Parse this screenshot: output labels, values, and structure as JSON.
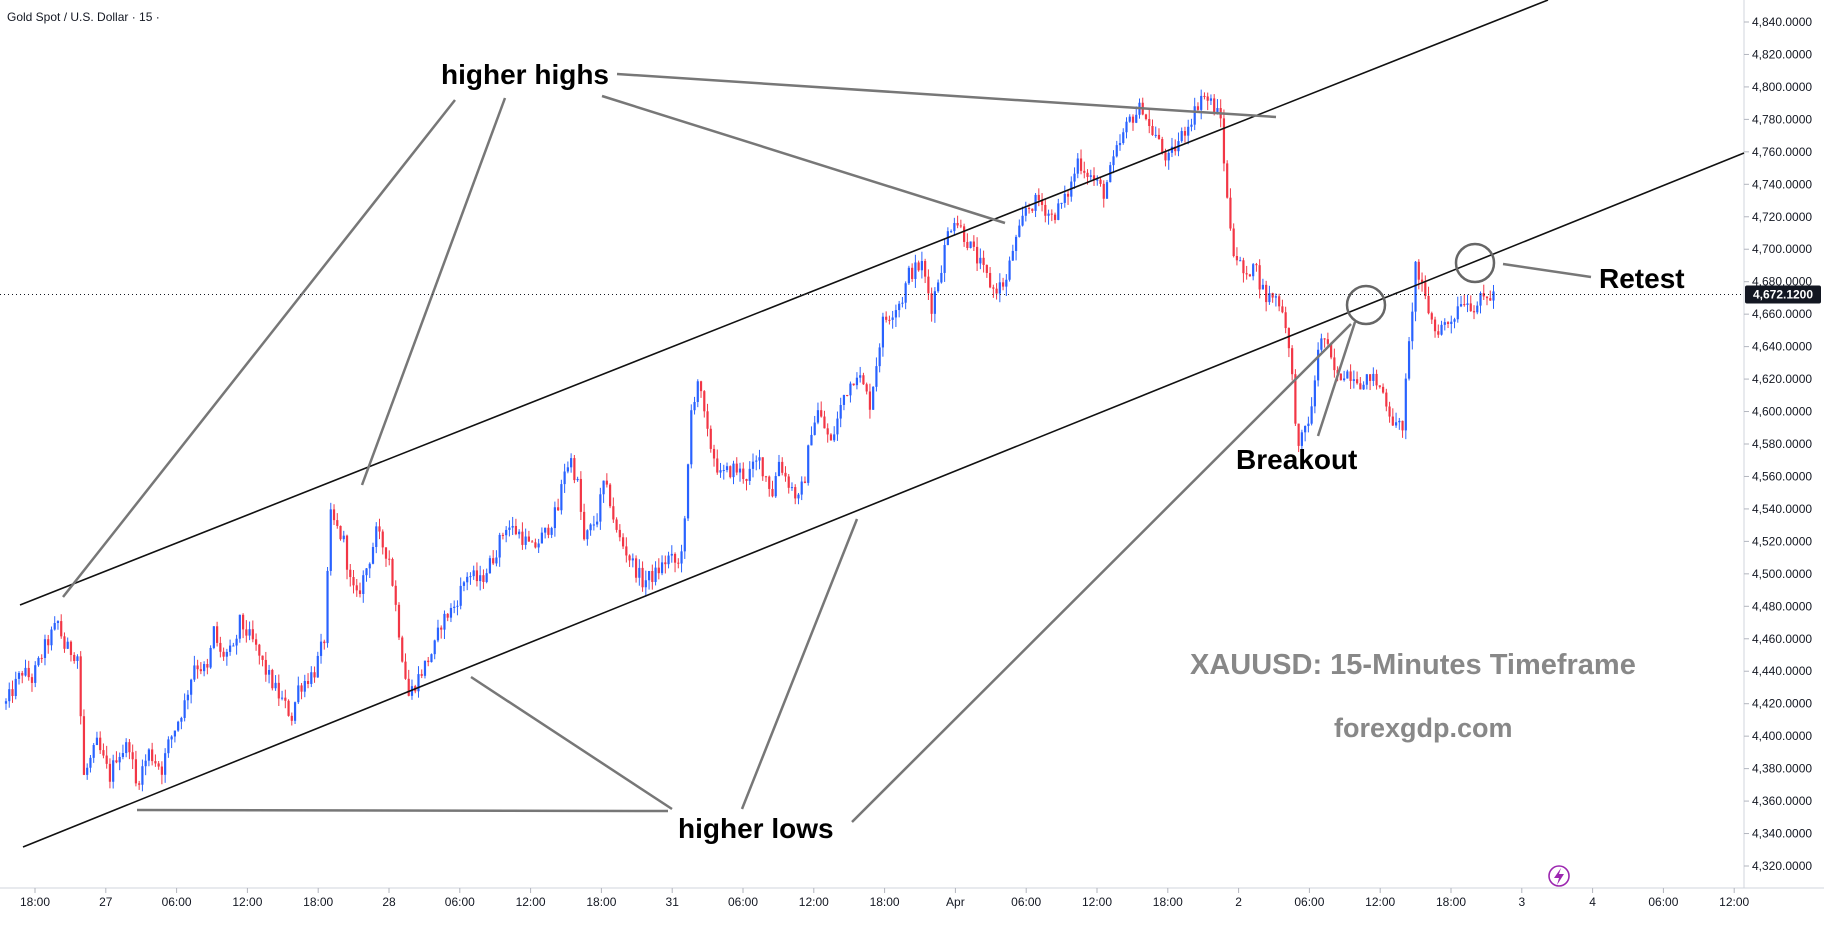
{
  "header": {
    "symbol_title": "Gold Spot / U.S. Dollar · 15 ·"
  },
  "price_axis": {
    "ticks": [
      "4,840.0000",
      "4,820.0000",
      "4,800.0000",
      "4,780.0000",
      "4,760.0000",
      "4,740.0000",
      "4,720.0000",
      "4,700.0000",
      "4,680.0000",
      "4,660.0000",
      "4,640.0000",
      "4,620.0000",
      "4,600.0000",
      "4,580.0000",
      "4,560.0000",
      "4,540.0000",
      "4,520.0000",
      "4,500.0000",
      "4,480.0000",
      "4,460.0000",
      "4,440.0000",
      "4,420.0000",
      "4,400.0000",
      "4,380.0000",
      "4,360.0000",
      "4,340.0000",
      "4,320.0000"
    ],
    "current_price": "4,672.1200"
  },
  "time_axis": {
    "labels": [
      "18:00",
      "27",
      "06:00",
      "12:00",
      "18:00",
      "28",
      "06:00",
      "12:00",
      "18:00",
      "31",
      "06:00",
      "12:00",
      "18:00",
      "Apr",
      "06:00",
      "12:00",
      "18:00",
      "2",
      "06:00",
      "12:00",
      "18:00",
      "3",
      "4",
      "06:00",
      "12:00"
    ]
  },
  "annotations": {
    "higher_highs": "higher highs",
    "higher_lows": "higher lows",
    "breakout": "Breakout",
    "retest": "Retest"
  },
  "watermark": {
    "title": "XAUUSD: 15-Minutes Timeframe",
    "site": "forexgdp.com"
  },
  "colors": {
    "up": "#2962ff",
    "down": "#f23645",
    "channel_line": "#111111",
    "pointer_line": "#777777",
    "watermark_text": "#888888",
    "axis_border": "#d1d4dc",
    "price_tag_bg": "#131722",
    "bolt_icon": "#9c27b0"
  },
  "chart_data": {
    "type": "candlestick",
    "instrument": "XAUUSD",
    "timeframe": "15",
    "ylim": [
      4310,
      4853
    ],
    "last_price": 4672.12,
    "path_points": [
      [
        0,
        4420
      ],
      [
        5,
        4440
      ],
      [
        8,
        4435
      ],
      [
        12,
        4455
      ],
      [
        16,
        4470
      ],
      [
        18,
        4455
      ],
      [
        22,
        4450
      ],
      [
        24,
        4375
      ],
      [
        28,
        4395
      ],
      [
        32,
        4375
      ],
      [
        34,
        4388
      ],
      [
        38,
        4395
      ],
      [
        40,
        4370
      ],
      [
        42,
        4380
      ],
      [
        44,
        4390
      ],
      [
        46,
        4385
      ],
      [
        48,
        4380
      ],
      [
        50,
        4395
      ],
      [
        55,
        4420
      ],
      [
        58,
        4445
      ],
      [
        62,
        4440
      ],
      [
        64,
        4465
      ],
      [
        66,
        4450
      ],
      [
        70,
        4452
      ],
      [
        72,
        4470
      ],
      [
        76,
        4458
      ],
      [
        80,
        4440
      ],
      [
        84,
        4425
      ],
      [
        88,
        4412
      ],
      [
        90,
        4430
      ],
      [
        95,
        4440
      ],
      [
        98,
        4460
      ],
      [
        100,
        4535
      ],
      [
        104,
        4520
      ],
      [
        106,
        4495
      ],
      [
        108,
        4485
      ],
      [
        112,
        4510
      ],
      [
        114,
        4525
      ],
      [
        118,
        4510
      ],
      [
        120,
        4480
      ],
      [
        122,
        4450
      ],
      [
        124,
        4425
      ],
      [
        128,
        4440
      ],
      [
        132,
        4455
      ],
      [
        134,
        4470
      ],
      [
        138,
        4480
      ],
      [
        142,
        4500
      ],
      [
        146,
        4495
      ],
      [
        150,
        4510
      ],
      [
        154,
        4530
      ],
      [
        158,
        4525
      ],
      [
        162,
        4515
      ],
      [
        166,
        4525
      ],
      [
        170,
        4540
      ],
      [
        172,
        4565
      ],
      [
        174,
        4570
      ],
      [
        176,
        4555
      ],
      [
        178,
        4520
      ],
      [
        182,
        4535
      ],
      [
        184,
        4555
      ],
      [
        186,
        4545
      ],
      [
        188,
        4525
      ],
      [
        192,
        4510
      ],
      [
        196,
        4495
      ],
      [
        200,
        4500
      ],
      [
        204,
        4510
      ],
      [
        207,
        4505
      ],
      [
        209,
        4530
      ],
      [
        211,
        4600
      ],
      [
        213,
        4620
      ],
      [
        216,
        4585
      ],
      [
        220,
        4560
      ],
      [
        224,
        4565
      ],
      [
        228,
        4560
      ],
      [
        232,
        4570
      ],
      [
        234,
        4560
      ],
      [
        236,
        4550
      ],
      [
        238,
        4570
      ],
      [
        240,
        4560
      ],
      [
        244,
        4545
      ],
      [
        246,
        4560
      ],
      [
        248,
        4590
      ],
      [
        250,
        4600
      ],
      [
        254,
        4580
      ],
      [
        258,
        4610
      ],
      [
        262,
        4625
      ],
      [
        264,
        4615
      ],
      [
        266,
        4605
      ],
      [
        268,
        4630
      ],
      [
        270,
        4655
      ],
      [
        274,
        4665
      ],
      [
        276,
        4670
      ],
      [
        278,
        4685
      ],
      [
        282,
        4690
      ],
      [
        285,
        4665
      ],
      [
        288,
        4690
      ],
      [
        290,
        4710
      ],
      [
        292,
        4720
      ],
      [
        296,
        4705
      ],
      [
        300,
        4690
      ],
      [
        304,
        4675
      ],
      [
        308,
        4680
      ],
      [
        310,
        4700
      ],
      [
        312,
        4710
      ],
      [
        314,
        4725
      ],
      [
        318,
        4730
      ],
      [
        322,
        4720
      ],
      [
        326,
        4730
      ],
      [
        328,
        4740
      ],
      [
        330,
        4755
      ],
      [
        334,
        4745
      ],
      [
        336,
        4740
      ],
      [
        338,
        4735
      ],
      [
        342,
        4760
      ],
      [
        344,
        4770
      ],
      [
        346,
        4780
      ],
      [
        350,
        4788
      ],
      [
        352,
        4775
      ],
      [
        354,
        4770
      ],
      [
        356,
        4760
      ],
      [
        358,
        4755
      ],
      [
        362,
        4770
      ],
      [
        366,
        4785
      ],
      [
        368,
        4795
      ],
      [
        371,
        4790
      ],
      [
        374,
        4780
      ],
      [
        376,
        4730
      ],
      [
        378,
        4700
      ],
      [
        380,
        4690
      ],
      [
        382,
        4680
      ],
      [
        384,
        4695
      ],
      [
        386,
        4680
      ],
      [
        388,
        4670
      ],
      [
        390,
        4672
      ],
      [
        392,
        4668
      ],
      [
        394,
        4655
      ],
      [
        396,
        4620
      ],
      [
        398,
        4575
      ],
      [
        400,
        4590
      ],
      [
        402,
        4600
      ],
      [
        404,
        4640
      ],
      [
        406,
        4645
      ],
      [
        408,
        4630
      ],
      [
        410,
        4620
      ],
      [
        412,
        4625
      ],
      [
        416,
        4622
      ],
      [
        418,
        4615
      ],
      [
        420,
        4622
      ],
      [
        424,
        4612
      ],
      [
        426,
        4600
      ],
      [
        428,
        4590
      ],
      [
        430,
        4592
      ],
      [
        432,
        4640
      ],
      [
        434,
        4690
      ],
      [
        436,
        4675
      ],
      [
        440,
        4650
      ],
      [
        444,
        4655
      ],
      [
        446,
        4660
      ],
      [
        448,
        4670
      ],
      [
        452,
        4665
      ],
      [
        454,
        4668
      ],
      [
        458,
        4672
      ]
    ],
    "annotations": [
      {
        "text": "higher highs",
        "type": "label"
      },
      {
        "text": "higher lows",
        "type": "label"
      },
      {
        "text": "Breakout",
        "type": "label"
      },
      {
        "text": "Retest",
        "type": "label"
      }
    ]
  }
}
